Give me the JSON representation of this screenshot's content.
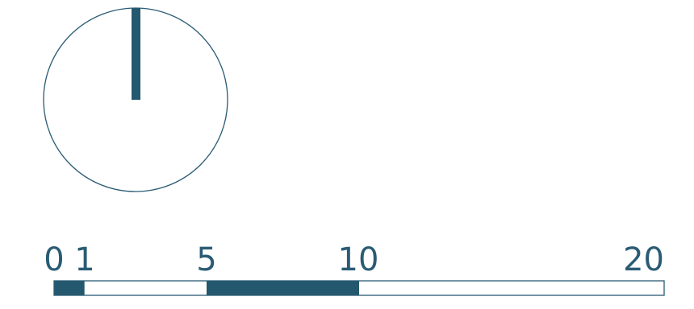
{
  "colors": {
    "accent": "#23586f",
    "outline": "#2a5b74",
    "background": "#ffffff"
  },
  "dial": {
    "icon": "north-arrow-icon",
    "needle_bearing_degrees": 0
  },
  "scale_bar": {
    "labels": [
      "0",
      "1",
      "5",
      "10",
      "20"
    ],
    "max": 20,
    "segments": [
      {
        "from": 0,
        "to": 1,
        "filled": true
      },
      {
        "from": 1,
        "to": 5,
        "filled": false
      },
      {
        "from": 5,
        "to": 10,
        "filled": true
      },
      {
        "from": 10,
        "to": 20,
        "filled": false
      }
    ]
  }
}
